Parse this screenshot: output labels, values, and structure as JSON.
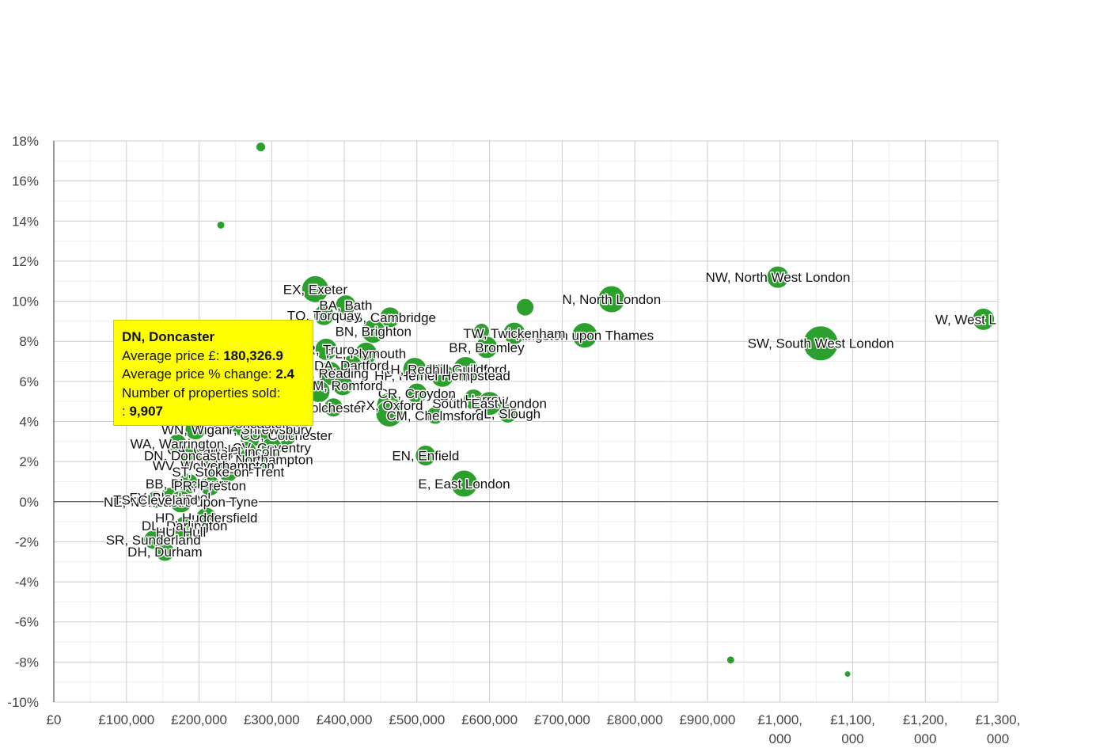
{
  "chart_data": {
    "type": "scatter",
    "title": "",
    "xlabel": "",
    "ylabel": "",
    "xlim": [
      0,
      1300000
    ],
    "ylim": [
      -10,
      18
    ],
    "x_ticks": [
      {
        "value": 0,
        "label": "£0"
      },
      {
        "value": 100000,
        "label": "£100,000"
      },
      {
        "value": 200000,
        "label": "£200,000"
      },
      {
        "value": 300000,
        "label": "£300,000"
      },
      {
        "value": 400000,
        "label": "£400,000"
      },
      {
        "value": 500000,
        "label": "£500,000"
      },
      {
        "value": 600000,
        "label": "£600,000"
      },
      {
        "value": 700000,
        "label": "£700,000"
      },
      {
        "value": 800000,
        "label": "£800,000"
      },
      {
        "value": 900000,
        "label": "£900,000"
      },
      {
        "value": 1000000,
        "label": "£1,000,\n000"
      },
      {
        "value": 1100000,
        "label": "£1,100,\n000"
      },
      {
        "value": 1200000,
        "label": "£1,200,\n000"
      },
      {
        "value": 1300000,
        "label": "£1,300,\n000"
      }
    ],
    "y_ticks": [
      {
        "value": 18,
        "label": "18%"
      },
      {
        "value": 16,
        "label": "16%"
      },
      {
        "value": 14,
        "label": "14%"
      },
      {
        "value": 12,
        "label": "12%"
      },
      {
        "value": 10,
        "label": "10%"
      },
      {
        "value": 8,
        "label": "8%"
      },
      {
        "value": 6,
        "label": "6%"
      },
      {
        "value": 4,
        "label": "4%"
      },
      {
        "value": 2,
        "label": "2%"
      },
      {
        "value": 0,
        "label": "0%"
      },
      {
        "value": -2,
        "label": "-2%"
      },
      {
        "value": -4,
        "label": "-4%"
      },
      {
        "value": -6,
        "label": "-6%"
      },
      {
        "value": -8,
        "label": "-8%"
      },
      {
        "value": -10,
        "label": "-10%"
      }
    ],
    "grid": true,
    "bubble_color": "#2ca02c",
    "size_meaning": "Number of properties sold",
    "points": [
      {
        "x": 1280000,
        "y": 9.1,
        "label": "W, West L",
        "size": 14,
        "label_anchor": "end"
      },
      {
        "x": 997000,
        "y": 11.2,
        "label": "NW, North West London",
        "size": 14
      },
      {
        "x": 1056000,
        "y": 7.9,
        "label": "SW, South West London",
        "size": 22
      },
      {
        "x": 768000,
        "y": 10.1,
        "label": "N, North London",
        "size": 17
      },
      {
        "x": 731000,
        "y": 8.3,
        "label": "Kingston upon Thames",
        "size": 16
      },
      {
        "x": 649000,
        "y": 9.7,
        "label": "",
        "size": 11
      },
      {
        "x": 634000,
        "y": 8.4,
        "label": "TW, Twickenham",
        "size": 14
      },
      {
        "x": 596000,
        "y": 7.7,
        "label": "BR, Bromley",
        "size": 14
      },
      {
        "x": 589000,
        "y": 8.5,
        "label": "",
        "size": 10
      },
      {
        "x": 565000,
        "y": 0.9,
        "label": "E, East London",
        "size": 17
      },
      {
        "x": 512000,
        "y": 2.3,
        "label": "EN, Enfield",
        "size": 13
      },
      {
        "x": 625000,
        "y": 4.4,
        "label": "SL, Slough",
        "size": 12
      },
      {
        "x": 578000,
        "y": 5.1,
        "label": "HA, Harrow",
        "size": 13
      },
      {
        "x": 600000,
        "y": 4.9,
        "label": "South East London",
        "size": 15
      },
      {
        "x": 567000,
        "y": 6.6,
        "label": "GU, Guildford",
        "size": 16
      },
      {
        "x": 535000,
        "y": 6.3,
        "label": "HP, Hemel Hempstead",
        "size": 15
      },
      {
        "x": 497000,
        "y": 6.6,
        "label": "RH, Redhill",
        "size": 15
      },
      {
        "x": 500000,
        "y": 5.4,
        "label": "CR, Croydon",
        "size": 13
      },
      {
        "x": 462000,
        "y": 4.8,
        "label": "OX, Oxford",
        "size": 16
      },
      {
        "x": 462000,
        "y": 4.4,
        "label": "",
        "size": 17
      },
      {
        "x": 525000,
        "y": 4.3,
        "label": "CM, Chelmsford",
        "size": 11
      },
      {
        "x": 463000,
        "y": 9.2,
        "label": "CB, Cambridge",
        "size": 13
      },
      {
        "x": 440000,
        "y": 8.5,
        "label": "BN, Brighton",
        "size": 15
      },
      {
        "x": 402000,
        "y": 9.8,
        "label": "BA, Bath",
        "size": 13
      },
      {
        "x": 360000,
        "y": 10.6,
        "label": "EX, Exeter",
        "size": 17
      },
      {
        "x": 372000,
        "y": 9.3,
        "label": "TQ, Torquay",
        "size": 13
      },
      {
        "x": 430000,
        "y": 7.4,
        "label": "PL, Plymouth",
        "size": 14
      },
      {
        "x": 375000,
        "y": 7.6,
        "label": "TR, Truro",
        "size": 14
      },
      {
        "x": 410000,
        "y": 6.8,
        "label": "DA, Dartford",
        "size": 13
      },
      {
        "x": 380000,
        "y": 6.4,
        "label": "RG, Reading",
        "size": 15
      },
      {
        "x": 398000,
        "y": 5.8,
        "label": "RM, Romford",
        "size": 13
      },
      {
        "x": 385000,
        "y": 4.7,
        "label": "Colchester",
        "size": 12
      },
      {
        "x": 365000,
        "y": 5.5,
        "label": "",
        "size": 14
      },
      {
        "x": 340000,
        "y": 4.2,
        "label": "",
        "size": 13
      },
      {
        "x": 320000,
        "y": 3.3,
        "label": "CO, Colchester",
        "size": 13
      },
      {
        "x": 290000,
        "y": 3.6,
        "label": "SY, Shrewsbury",
        "size": 13
      },
      {
        "x": 270000,
        "y": 3.1,
        "label": "",
        "size": 12
      },
      {
        "x": 300000,
        "y": 2.7,
        "label": "CV, Coventry",
        "size": 13
      },
      {
        "x": 265000,
        "y": 2.5,
        "label": "LN, Lincoln",
        "size": 13
      },
      {
        "x": 285000,
        "y": 2.1,
        "label": "NN, Northampton",
        "size": 13
      },
      {
        "x": 205000,
        "y": 2.6,
        "label": "CA, Carlisle",
        "size": 12
      },
      {
        "x": 260000,
        "y": 3.9,
        "label": "DN, Doncaster",
        "size": 16
      },
      {
        "x": 195000,
        "y": 3.6,
        "label": "WN, Wigan",
        "size": 13
      },
      {
        "x": 170000,
        "y": 2.9,
        "label": "WA, Warrington",
        "size": 12
      },
      {
        "x": 185000,
        "y": 2.3,
        "label": "DN, Doncaster",
        "size": 12
      },
      {
        "x": 220000,
        "y": 1.8,
        "label": "WV, Wolverhampton",
        "size": 13
      },
      {
        "x": 240000,
        "y": 1.5,
        "label": "ST, Stoke-on-Trent",
        "size": 13
      },
      {
        "x": 285000,
        "y": 17.7,
        "label": "",
        "size": 6
      },
      {
        "x": 230000,
        "y": 13.8,
        "label": "",
        "size": 5
      },
      {
        "x": 185000,
        "y": 0.9,
        "label": "BB, Blackburn",
        "size": 13
      },
      {
        "x": 215000,
        "y": 0.8,
        "label": "PR, Preston",
        "size": 13
      },
      {
        "x": 160000,
        "y": 0.2,
        "label": "FY, Blackpool",
        "size": 13
      },
      {
        "x": 175000,
        "y": 0.0,
        "label": "NE, Newcastle upon Tyne",
        "size": 14
      },
      {
        "x": 140000,
        "y": 0.1,
        "label": "TS, Cleveland",
        "size": 11
      },
      {
        "x": 210000,
        "y": -0.8,
        "label": "HD, Huddersfield",
        "size": 13
      },
      {
        "x": 180000,
        "y": -1.2,
        "label": "DL, Darlington",
        "size": 12
      },
      {
        "x": 175000,
        "y": -1.5,
        "label": "HU, Hull",
        "size": 12
      },
      {
        "x": 137000,
        "y": -1.9,
        "label": "SR, Sunderland",
        "size": 12
      },
      {
        "x": 153000,
        "y": -2.5,
        "label": "DH, Durham",
        "size": 12
      },
      {
        "x": 932000,
        "y": -7.9,
        "label": "",
        "size": 5
      },
      {
        "x": 1093000,
        "y": -8.6,
        "label": "",
        "size": 4
      }
    ],
    "tooltip": {
      "title": "DN, Doncaster",
      "price_label": "Average price £:",
      "price_value": "180,326.9",
      "change_label": "Average price % change:",
      "change_value": "2.4",
      "sold_label": "Number of properties sold:",
      "sold_prefix": ":",
      "sold_value": "9,907"
    }
  }
}
